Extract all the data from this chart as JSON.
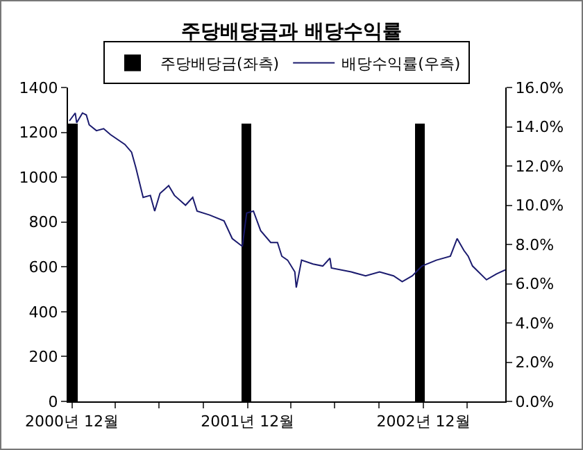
{
  "chart_data": {
    "type": "bar",
    "title": "주당배당금과 배당수익률",
    "xlim": [
      "2000-12-23",
      "2003-06-19"
    ],
    "xticks": [
      {
        "value": "2000-12-31",
        "label": "2000년 12월"
      },
      {
        "value": "2001-03-31",
        "label": null
      },
      {
        "value": "2001-06-30",
        "label": null
      },
      {
        "value": "2001-09-30",
        "label": null
      },
      {
        "value": "2001-12-31",
        "label": "2001년 12월"
      },
      {
        "value": "2002-03-31",
        "label": null
      },
      {
        "value": "2002-06-30",
        "label": null
      },
      {
        "value": "2002-09-30",
        "label": null
      },
      {
        "value": "2002-12-31",
        "label": "2002년 12월"
      },
      {
        "value": "2003-03-31",
        "label": null
      }
    ],
    "ylim": [
      0,
      1400
    ],
    "yticks": [
      0,
      200,
      400,
      600,
      800,
      1000,
      1200,
      1400
    ],
    "y2lim": [
      0,
      16
    ],
    "y2ticks": [
      {
        "value": 0,
        "label": "0.0%"
      },
      {
        "value": 2,
        "label": "2.0%"
      },
      {
        "value": 4,
        "label": "4.0%"
      },
      {
        "value": 6,
        "label": "6.0%"
      },
      {
        "value": 8,
        "label": "8.0%"
      },
      {
        "value": 10,
        "label": "10.0%"
      },
      {
        "value": 12,
        "label": "12.0%"
      },
      {
        "value": 14,
        "label": "14.0%"
      },
      {
        "value": 16,
        "label": "16.0%"
      }
    ],
    "grid": false,
    "legend": "top",
    "marker": "none",
    "line_style": "solid",
    "series": [
      {
        "name": "주당배당금(좌측)",
        "color": "#000000",
        "x": [
          "2001-01-01",
          "2001-12-29",
          "2002-12-25"
        ],
        "values": [
          1240,
          1240,
          1240
        ]
      },
      {
        "name": "배당수익률(우측)",
        "type": "line",
        "axis": "y2",
        "color": "#1a1a6e",
        "x": [
          "2000-12-26",
          "2001-01-07",
          "2001-01-10",
          "2001-01-22",
          "2001-01-30",
          "2001-02-05",
          "2001-02-20",
          "2001-03-07",
          "2001-03-21",
          "2001-04-20",
          "2001-05-04",
          "2001-05-13",
          "2001-05-28",
          "2001-06-12",
          "2001-06-21",
          "2001-07-02",
          "2001-07-11",
          "2001-07-20",
          "2001-08-01",
          "2001-08-24",
          "2001-09-08",
          "2001-09-17",
          "2001-10-13",
          "2001-11-12",
          "2001-11-29",
          "2001-12-20",
          "2001-12-29",
          "2002-01-12",
          "2002-01-27",
          "2002-02-17",
          "2002-03-03",
          "2002-03-12",
          "2002-03-24",
          "2002-04-08",
          "2002-04-11",
          "2002-04-22",
          "2002-05-16",
          "2002-06-05",
          "2002-06-20",
          "2002-06-23",
          "2002-08-03",
          "2002-09-02",
          "2002-10-01",
          "2002-10-30",
          "2002-11-17",
          "2002-12-08",
          "2002-12-28",
          "2003-01-27",
          "2003-02-25",
          "2003-03-11",
          "2003-03-25",
          "2003-04-03",
          "2003-04-12",
          "2003-05-11",
          "2003-06-01",
          "2003-06-19"
        ],
        "values": [
          14.3,
          14.7,
          14.2,
          14.7,
          14.6,
          14.1,
          13.8,
          13.9,
          13.6,
          13.1,
          12.7,
          11.9,
          10.4,
          10.5,
          9.7,
          10.6,
          10.8,
          11.0,
          10.5,
          10.0,
          10.4,
          9.7,
          9.5,
          9.2,
          8.3,
          7.9,
          9.6,
          9.7,
          8.7,
          8.1,
          8.1,
          7.4,
          7.2,
          6.6,
          5.8,
          7.2,
          7.0,
          6.9,
          7.3,
          6.8,
          6.6,
          6.4,
          6.6,
          6.4,
          6.1,
          6.4,
          6.9,
          7.2,
          7.4,
          8.3,
          7.7,
          7.4,
          6.9,
          6.2,
          6.5,
          6.7
        ]
      }
    ]
  }
}
